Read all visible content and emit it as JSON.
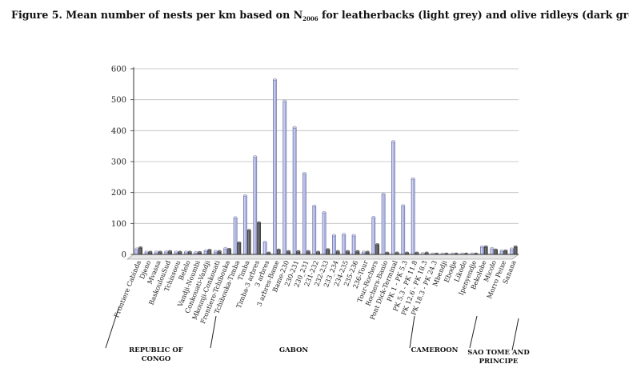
{
  "caption": {
    "prefix": "Figure 5. Mean number of nests per km based on N",
    "subscript": "2006",
    "suffix": " for leatherbacks (light grey) and olive ridleys (dark grey)."
  },
  "chart_data": {
    "type": "bar",
    "ylim": [
      0,
      600
    ],
    "yticks": [
      0,
      100,
      200,
      300,
      400,
      500,
      600
    ],
    "grid": true,
    "categories": [
      "Frontiere Cabinda",
      "Djeno",
      "Mvassa",
      "BaskoulouSud",
      "Tchissoou",
      "Belelo",
      "Vandji-Noumbi",
      "Conkouati-Vandji",
      "Mkounji-Conkouati",
      "Frontiere-Tchibouka",
      "Tchibouka-Timba",
      "Timba",
      "Timba-3 arbres",
      "3 arbres",
      "3 arbres-Bame",
      "Bame-230",
      "230-231",
      "230_231",
      "231-232",
      "232-233",
      "233_234",
      "234-235",
      "235-236",
      "236-Tour",
      "Tour-Rochers",
      "Rochers-Banio",
      "Pont Dick-Terminal",
      "PK 1 - PK 5.3",
      "PK 5.3 - PK 11.8",
      "PK 12.6 - PK 18.3",
      "PK 18.3 - PK 24.3",
      "Mbendji",
      "Ebodje",
      "Likodo",
      "Ipenyendje",
      "Bekolobe",
      "Micolo",
      "Morro Peixe",
      "Sanana"
    ],
    "series": [
      {
        "name": "leatherbacks",
        "color": "#a9aee0",
        "values": [
          18,
          8,
          8,
          9,
          8,
          8,
          7,
          12,
          10,
          20,
          119,
          190,
          316,
          40,
          565,
          496,
          411,
          262,
          157,
          136,
          62,
          65,
          62,
          8,
          120,
          195,
          365,
          158,
          245,
          3,
          2,
          2,
          2,
          2,
          2,
          25,
          20,
          12,
          18
        ]
      },
      {
        "name": "olive ridleys",
        "color": "#555555",
        "values": [
          22,
          8,
          8,
          10,
          8,
          8,
          7,
          14,
          10,
          17,
          38,
          78,
          103,
          5,
          15,
          10,
          10,
          10,
          8,
          16,
          10,
          10,
          10,
          8,
          32,
          5,
          5,
          5,
          5,
          5,
          2,
          2,
          2,
          2,
          2,
          25,
          15,
          12,
          25
        ]
      }
    ],
    "regions": [
      {
        "label_lines": [
          "REPUBLIC OF",
          "CONGO"
        ]
      },
      {
        "label_lines": [
          "GABON"
        ]
      },
      {
        "label_lines": [
          "CAMEROON"
        ]
      },
      {
        "label_lines": [
          "SAO TOME AND",
          "PRINCIPE"
        ]
      }
    ]
  }
}
